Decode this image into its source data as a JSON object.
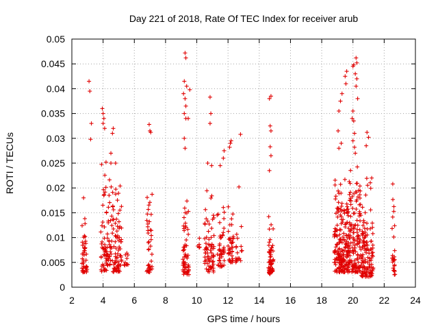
{
  "chart_data": {
    "type": "scatter",
    "title": "Day 221 of 2018, Rate Of TEC Index for receiver arub",
    "xlabel": "GPS time / hours",
    "ylabel": "ROTI / TECUs",
    "xlim": [
      2,
      24
    ],
    "ylim": [
      0,
      0.05
    ],
    "x_ticks": [
      2,
      4,
      6,
      8,
      10,
      12,
      14,
      16,
      18,
      20,
      22,
      24
    ],
    "y_ticks": [
      0,
      0.005,
      0.01,
      0.015,
      0.02,
      0.025,
      0.03,
      0.035,
      0.04,
      0.045,
      0.05
    ],
    "x_tick_labels": [
      "2",
      "4",
      "6",
      "8",
      "10",
      "12",
      "14",
      "16",
      "18",
      "20",
      "22",
      "24"
    ],
    "y_tick_labels": [
      "0",
      "0.005",
      "0.01",
      "0.015",
      "0.02",
      "0.025",
      "0.03",
      "0.035",
      "0.04",
      "0.045",
      "0.05"
    ],
    "grid": true,
    "marker": "+",
    "marker_color": "#e00000",
    "clusters": [
      {
        "x_start": 2.65,
        "x_end": 3.0,
        "y_min": 0.003,
        "y_max": 0.015,
        "count": 45
      },
      {
        "x_start": 3.85,
        "x_end": 5.2,
        "y_min": 0.003,
        "y_max": 0.026,
        "count": 160
      },
      {
        "x_start": 5.3,
        "x_end": 5.6,
        "y_min": 0.004,
        "y_max": 0.008,
        "count": 10
      },
      {
        "x_start": 6.8,
        "x_end": 7.15,
        "y_min": 0.003,
        "y_max": 0.024,
        "count": 40
      },
      {
        "x_start": 9.1,
        "x_end": 9.5,
        "y_min": 0.0025,
        "y_max": 0.022,
        "count": 55
      },
      {
        "x_start": 10.0,
        "x_end": 10.2,
        "y_min": 0.008,
        "y_max": 0.011,
        "count": 6
      },
      {
        "x_start": 10.5,
        "x_end": 11.1,
        "y_min": 0.003,
        "y_max": 0.022,
        "count": 70
      },
      {
        "x_start": 11.3,
        "x_end": 11.8,
        "y_min": 0.004,
        "y_max": 0.018,
        "count": 45
      },
      {
        "x_start": 12.0,
        "x_end": 12.35,
        "y_min": 0.005,
        "y_max": 0.02,
        "count": 40
      },
      {
        "x_start": 12.5,
        "x_end": 12.9,
        "y_min": 0.005,
        "y_max": 0.014,
        "count": 18
      },
      {
        "x_start": 14.55,
        "x_end": 14.9,
        "y_min": 0.0025,
        "y_max": 0.016,
        "count": 55
      },
      {
        "x_start": 18.8,
        "x_end": 19.6,
        "y_min": 0.003,
        "y_max": 0.026,
        "count": 160
      },
      {
        "x_start": 19.6,
        "x_end": 20.5,
        "y_min": 0.003,
        "y_max": 0.026,
        "count": 180
      },
      {
        "x_start": 20.5,
        "x_end": 21.3,
        "y_min": 0.002,
        "y_max": 0.024,
        "count": 120
      },
      {
        "x_start": 22.5,
        "x_end": 22.7,
        "y_min": 0.0025,
        "y_max": 0.021,
        "count": 25
      }
    ],
    "points": [
      [
        2.75,
        0.018
      ],
      [
        3.1,
        0.0415
      ],
      [
        3.15,
        0.0395
      ],
      [
        3.25,
        0.033
      ],
      [
        3.2,
        0.0298
      ],
      [
        3.95,
        0.036
      ],
      [
        4.0,
        0.035
      ],
      [
        4.05,
        0.034
      ],
      [
        4.0,
        0.033
      ],
      [
        4.1,
        0.032
      ],
      [
        4.5,
        0.027
      ],
      [
        4.6,
        0.031
      ],
      [
        4.65,
        0.032
      ],
      [
        4.8,
        0.025
      ],
      [
        4.5,
        0.025
      ],
      [
        6.95,
        0.0328
      ],
      [
        7.0,
        0.0315
      ],
      [
        7.05,
        0.0312
      ],
      [
        9.25,
        0.0472
      ],
      [
        9.3,
        0.0462
      ],
      [
        9.2,
        0.0415
      ],
      [
        9.35,
        0.0405
      ],
      [
        9.15,
        0.039
      ],
      [
        9.25,
        0.038
      ],
      [
        9.3,
        0.0365
      ],
      [
        9.2,
        0.035
      ],
      [
        9.3,
        0.034
      ],
      [
        9.45,
        0.034
      ],
      [
        9.55,
        0.0398
      ],
      [
        9.2,
        0.03
      ],
      [
        9.25,
        0.028
      ],
      [
        10.85,
        0.0383
      ],
      [
        10.9,
        0.035
      ],
      [
        10.85,
        0.033
      ],
      [
        10.7,
        0.025
      ],
      [
        10.95,
        0.0245
      ],
      [
        11.5,
        0.0245
      ],
      [
        11.7,
        0.026
      ],
      [
        11.75,
        0.0275
      ],
      [
        12.1,
        0.0282
      ],
      [
        12.2,
        0.0295
      ],
      [
        12.15,
        0.029
      ],
      [
        12.8,
        0.0308
      ],
      [
        12.7,
        0.0202
      ],
      [
        14.65,
        0.038
      ],
      [
        14.75,
        0.0385
      ],
      [
        14.7,
        0.0325
      ],
      [
        14.75,
        0.0315
      ],
      [
        14.7,
        0.0283
      ],
      [
        14.75,
        0.0265
      ],
      [
        14.65,
        0.0235
      ],
      [
        19.05,
        0.0315
      ],
      [
        19.1,
        0.0355
      ],
      [
        19.2,
        0.0375
      ],
      [
        19.3,
        0.039
      ],
      [
        19.25,
        0.029
      ],
      [
        19.1,
        0.028
      ],
      [
        19.5,
        0.0425
      ],
      [
        19.6,
        0.0435
      ],
      [
        19.55,
        0.041
      ],
      [
        20.0,
        0.0445
      ],
      [
        20.05,
        0.0448
      ],
      [
        20.2,
        0.0462
      ],
      [
        20.25,
        0.0452
      ],
      [
        20.15,
        0.043
      ],
      [
        20.25,
        0.042
      ],
      [
        20.2,
        0.0405
      ],
      [
        20.3,
        0.038
      ],
      [
        20.0,
        0.0355
      ],
      [
        19.95,
        0.034
      ],
      [
        20.05,
        0.0335
      ],
      [
        20.1,
        0.031
      ],
      [
        20.0,
        0.0295
      ],
      [
        20.1,
        0.0282
      ],
      [
        20.15,
        0.027
      ],
      [
        20.9,
        0.0312
      ],
      [
        21.0,
        0.0302
      ],
      [
        20.85,
        0.0285
      ],
      [
        21.2,
        0.022
      ],
      [
        22.55,
        0.0208
      ]
    ]
  }
}
